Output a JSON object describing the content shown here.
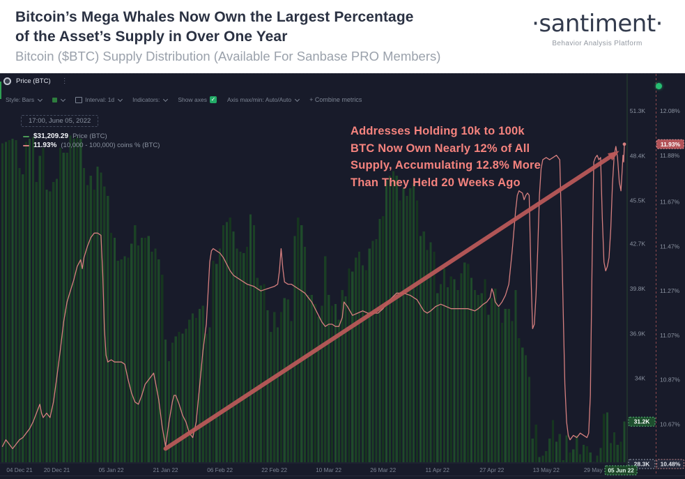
{
  "header": {
    "title_line1": "Bitcoin’s Mega Whales Now Own the Largest Percentage",
    "title_line2": "of the Asset’s Supply in Over One Year",
    "subtitle": "Bitcoin ($BTC) Supply Distribution (Available For Sanbase PRO Members)",
    "logo": "·santiment·",
    "logo_tagline": "Behavior Analysis Platform"
  },
  "chart_header": {
    "metric_title": "Price (BTC)",
    "menu_glyph": "⋮"
  },
  "toolbar": {
    "style_label": "Style: Bars",
    "interval_label": "Interval: 1d",
    "indicators_label": "Indicators:",
    "show_axes_label": "Show axes",
    "check_glyph": "✓",
    "axis_label": "Axis max/min: Auto/Auto",
    "combine_label": "+ Combine metrics"
  },
  "legend": {
    "timestamp": "17:00, June 05, 2022",
    "price_value": "$31,209.29",
    "price_label": "Price (BTC)",
    "pct_value": "11.93%",
    "pct_label": "(10,000 - 100,000) coins % (BTC)"
  },
  "annotation": {
    "lines": [
      "Addresses Holding 10k to 100k",
      "BTC Now Own Nearly 12% of All",
      "Supply, Accumulating 12.8% More",
      "Than They Held 20 Weeks Ago"
    ]
  },
  "chart_data": {
    "type": "bar+line",
    "title": "Bitcoin ($BTC) Supply Distribution",
    "x_axis": {
      "start_date": "2021-12-04",
      "end_date": "2022-06-05",
      "tick_labels": [
        "04 Dec 21",
        "20 Dec 21",
        "05 Jan 22",
        "21 Jan 22",
        "06 Feb 22",
        "22 Feb 22",
        "10 Mar 22",
        "26 Mar 22",
        "11 Apr 22",
        "27 Apr 22",
        "13 May 22",
        "29 May 22"
      ],
      "tick_days": [
        0,
        16,
        32,
        48,
        64,
        80,
        96,
        112,
        128,
        144,
        160,
        175
      ],
      "cursor_tick": {
        "label": "05 Jun 22",
        "day": 182
      }
    },
    "y_axis_price": {
      "label": "Price (BTC)",
      "min": 28.3,
      "max": 51.3,
      "ticks": [
        {
          "v": 51.3,
          "label": "51.3K"
        },
        {
          "v": 48.4,
          "label": "48.4K"
        },
        {
          "v": 45.5,
          "label": "45.5K"
        },
        {
          "v": 42.7,
          "label": "42.7K"
        },
        {
          "v": 39.8,
          "label": "39.8K"
        },
        {
          "v": 36.9,
          "label": "36.9K"
        },
        {
          "v": 34.0,
          "label": "34K"
        }
      ],
      "current": {
        "v": 31.2,
        "label": "31.2K"
      },
      "cursor": {
        "v": 28.3,
        "label": "28.3K"
      }
    },
    "y_axis_pct": {
      "label": "(10,000 - 100,000) coins % (BTC)",
      "min": 10.48,
      "max": 12.08,
      "ticks": [
        {
          "v": 12.08,
          "label": "12.08%"
        },
        {
          "v": 11.88,
          "label": "11.88%"
        },
        {
          "v": 11.67,
          "label": "11.67%"
        },
        {
          "v": 11.47,
          "label": "11.47%"
        },
        {
          "v": 11.27,
          "label": "11.27%"
        },
        {
          "v": 11.07,
          "label": "11.07%"
        },
        {
          "v": 10.87,
          "label": "10.87%"
        },
        {
          "v": 10.67,
          "label": "10.67%"
        }
      ],
      "current": {
        "v": 11.93,
        "label": "11.93%"
      },
      "cursor": {
        "v": 10.48,
        "label": "10.48%"
      }
    },
    "price_bars": [
      49.2,
      49.3,
      49.4,
      49.5,
      49.4,
      47.6,
      47.2,
      49.3,
      49.5,
      49.6,
      46.7,
      48.4,
      48.9,
      46.2,
      46.1,
      46.7,
      46.9,
      48.9,
      48.6,
      48.6,
      49.7,
      49.5,
      49.6,
      49.5,
      47.6,
      46.5,
      47.1,
      46.2,
      47.7,
      47.3,
      46.4,
      45.8,
      43.4,
      43.1,
      41.6,
      41.7,
      41.9,
      41.8,
      42.7,
      43.9,
      42.6,
      43.1,
      43.1,
      43.2,
      42.2,
      42.4,
      41.7,
      40.7,
      36.5,
      35.1,
      36.3,
      36.7,
      37.0,
      36.9,
      37.2,
      37.8,
      38.2,
      37.9,
      38.5,
      38.7,
      36.9,
      37.3,
      41.6,
      41.4,
      42.4,
      43.9,
      44.1,
      44.4,
      43.5,
      42.4,
      42.2,
      42.1,
      42.5,
      44.6,
      43.9,
      40.5,
      40.0,
      40.1,
      38.4,
      37.0,
      38.3,
      37.3,
      38.3,
      39.2,
      39.1,
      37.7,
      43.2,
      44.4,
      43.9,
      42.5,
      39.4,
      39.4,
      38.8,
      38.0,
      38.7,
      41.9,
      39.4,
      38.7,
      38.8,
      37.8,
      39.7,
      39.3,
      41.1,
      40.9,
      41.8,
      42.2,
      41.3,
      41.0,
      42.4,
      42.9,
      43.0,
      44.3,
      44.5,
      46.8,
      47.1,
      47.4,
      47.1,
      45.5,
      46.3,
      45.8,
      46.3,
      46.6,
      45.5,
      43.2,
      43.5,
      42.3,
      42.8,
      42.2,
      39.5,
      40.1,
      41.1,
      39.9,
      40.6,
      40.4,
      39.7,
      40.8,
      41.5,
      41.4,
      40.5,
      39.7,
      39.4,
      39.5,
      40.4,
      38.1,
      39.2,
      39.8,
      38.6,
      37.6,
      38.5,
      38.5,
      37.7,
      39.7,
      36.6,
      36.0,
      35.5,
      34.1,
      30.1,
      31.0,
      28.9,
      29.0,
      29.3,
      30.1,
      31.3,
      29.9,
      30.4,
      28.7,
      30.3,
      29.2,
      29.4,
      30.3,
      29.1,
      29.7,
      29.6,
      29.2,
      28.6,
      29.0,
      29.5,
      31.7,
      31.8,
      29.8,
      30.5,
      29.7,
      29.9,
      31.2
    ],
    "pct_line_points": [
      [
        0,
        10.57
      ],
      [
        1,
        10.6
      ],
      [
        2,
        10.58
      ],
      [
        3,
        10.56
      ],
      [
        4,
        10.58
      ],
      [
        5,
        10.6
      ],
      [
        6,
        10.61
      ],
      [
        7,
        10.63
      ],
      [
        8,
        10.65
      ],
      [
        9,
        10.68
      ],
      [
        10,
        10.72
      ],
      [
        11,
        10.76
      ],
      [
        11.5,
        10.72
      ],
      [
        12,
        10.7
      ],
      [
        13,
        10.72
      ],
      [
        14,
        10.7
      ],
      [
        15,
        10.77
      ],
      [
        16,
        10.88
      ],
      [
        17,
        11.0
      ],
      [
        18,
        11.13
      ],
      [
        19,
        11.22
      ],
      [
        20,
        11.27
      ],
      [
        21,
        11.32
      ],
      [
        22,
        11.38
      ],
      [
        23,
        11.41
      ],
      [
        23.5,
        11.37
      ],
      [
        24,
        11.42
      ],
      [
        25,
        11.47
      ],
      [
        26,
        11.51
      ],
      [
        27,
        11.53
      ],
      [
        28,
        11.53
      ],
      [
        29,
        11.52
      ],
      [
        29.5,
        11.35
      ],
      [
        30,
        11.1
      ],
      [
        30.5,
        10.98
      ],
      [
        31,
        10.95
      ],
      [
        32,
        10.96
      ],
      [
        33,
        10.95
      ],
      [
        34,
        10.95
      ],
      [
        35,
        10.95
      ],
      [
        36,
        10.94
      ],
      [
        37,
        10.87
      ],
      [
        38,
        10.81
      ],
      [
        39,
        10.77
      ],
      [
        40,
        10.76
      ],
      [
        41,
        10.8
      ],
      [
        42,
        10.85
      ],
      [
        43,
        10.87
      ],
      [
        44,
        10.89
      ],
      [
        44.5,
        10.9
      ],
      [
        45,
        10.86
      ],
      [
        46,
        10.78
      ],
      [
        47,
        10.66
      ],
      [
        48,
        10.57
      ],
      [
        49,
        10.68
      ],
      [
        50,
        10.77
      ],
      [
        50.5,
        10.8
      ],
      [
        51,
        10.8
      ],
      [
        52,
        10.76
      ],
      [
        53,
        10.71
      ],
      [
        54,
        10.68
      ],
      [
        55,
        10.63
      ],
      [
        56,
        10.61
      ],
      [
        57,
        10.68
      ],
      [
        58,
        10.84
      ],
      [
        59,
        11.0
      ],
      [
        60,
        11.12
      ],
      [
        61,
        11.4
      ],
      [
        61.5,
        11.45
      ],
      [
        62,
        11.46
      ],
      [
        63,
        11.45
      ],
      [
        64,
        11.44
      ],
      [
        65,
        11.42
      ],
      [
        66,
        11.39
      ],
      [
        67,
        11.36
      ],
      [
        68,
        11.34
      ],
      [
        70,
        11.32
      ],
      [
        72,
        11.3
      ],
      [
        74,
        11.29
      ],
      [
        76,
        11.27
      ],
      [
        78,
        11.28
      ],
      [
        80,
        11.29
      ],
      [
        81,
        11.3
      ],
      [
        81.5,
        11.36
      ],
      [
        82,
        11.46
      ],
      [
        82.5,
        11.37
      ],
      [
        83,
        11.31
      ],
      [
        84,
        11.3
      ],
      [
        85,
        11.3
      ],
      [
        86,
        11.29
      ],
      [
        87,
        11.28
      ],
      [
        88,
        11.27
      ],
      [
        89,
        11.26
      ],
      [
        90,
        11.24
      ],
      [
        91,
        11.22
      ],
      [
        92,
        11.19
      ],
      [
        93,
        11.16
      ],
      [
        94,
        11.13
      ],
      [
        95,
        11.11
      ],
      [
        96,
        11.12
      ],
      [
        97,
        11.12
      ],
      [
        98,
        11.11
      ],
      [
        99,
        11.11
      ],
      [
        100,
        11.15
      ],
      [
        100.5,
        11.22
      ],
      [
        101.5,
        11.2
      ],
      [
        103,
        11.16
      ],
      [
        104.5,
        11.17
      ],
      [
        106,
        11.18
      ],
      [
        107.5,
        11.17
      ],
      [
        109,
        11.17
      ],
      [
        110.5,
        11.17
      ],
      [
        112,
        11.19
      ],
      [
        114,
        11.23
      ],
      [
        116,
        11.26
      ],
      [
        118,
        11.26
      ],
      [
        120,
        11.25
      ],
      [
        122,
        11.23
      ],
      [
        124,
        11.18
      ],
      [
        125,
        11.17
      ],
      [
        126,
        11.18
      ],
      [
        127.5,
        11.2
      ],
      [
        129,
        11.21
      ],
      [
        130.5,
        11.2
      ],
      [
        132,
        11.19
      ],
      [
        133.5,
        11.19
      ],
      [
        135,
        11.19
      ],
      [
        137,
        11.19
      ],
      [
        139,
        11.18
      ],
      [
        140,
        11.19
      ],
      [
        141.5,
        11.21
      ],
      [
        142.5,
        11.22
      ],
      [
        143.5,
        11.24
      ],
      [
        144,
        11.28
      ],
      [
        144.5,
        11.26
      ],
      [
        145,
        11.22
      ],
      [
        146,
        11.2
      ],
      [
        147,
        11.22
      ],
      [
        148,
        11.25
      ],
      [
        149,
        11.3
      ],
      [
        150,
        11.45
      ],
      [
        151,
        11.63
      ],
      [
        151.5,
        11.7
      ],
      [
        152,
        11.72
      ],
      [
        153,
        11.71
      ],
      [
        153.5,
        11.68
      ],
      [
        154,
        11.7
      ],
      [
        154.5,
        11.71
      ],
      [
        155,
        11.7
      ],
      [
        155.5,
        11.35
      ],
      [
        156,
        11.1
      ],
      [
        156.5,
        11.12
      ],
      [
        157,
        11.25
      ],
      [
        157.5,
        11.45
      ],
      [
        158,
        11.7
      ],
      [
        158.5,
        11.82
      ],
      [
        159,
        11.86
      ],
      [
        160,
        11.87
      ],
      [
        161,
        11.86
      ],
      [
        162,
        11.87
      ],
      [
        163,
        11.88
      ],
      [
        163.5,
        11.87
      ],
      [
        164,
        11.86
      ],
      [
        164.5,
        11.55
      ],
      [
        165,
        11.18
      ],
      [
        165.5,
        10.85
      ],
      [
        166,
        10.68
      ],
      [
        166.5,
        10.62
      ],
      [
        167,
        10.6
      ],
      [
        168,
        10.62
      ],
      [
        169,
        10.61
      ],
      [
        170,
        10.63
      ],
      [
        171,
        10.62
      ],
      [
        172,
        10.61
      ],
      [
        172.5,
        10.63
      ],
      [
        173,
        10.8
      ],
      [
        173.5,
        11.4
      ],
      [
        174,
        11.85
      ],
      [
        174.5,
        11.87
      ],
      [
        175,
        11.88
      ],
      [
        175.5,
        11.86
      ],
      [
        176,
        11.87
      ],
      [
        176.5,
        11.6
      ],
      [
        177,
        11.4
      ],
      [
        177.5,
        11.36
      ],
      [
        178,
        11.38
      ],
      [
        178.5,
        11.42
      ],
      [
        179,
        11.55
      ],
      [
        179.5,
        11.75
      ],
      [
        180,
        11.88
      ],
      [
        180.5,
        11.92
      ],
      [
        181,
        11.87
      ],
      [
        181.5,
        11.76
      ],
      [
        182,
        11.72
      ],
      [
        182.3,
        11.8
      ],
      [
        182.6,
        11.88
      ],
      [
        182.8,
        11.85
      ],
      [
        183,
        11.93
      ]
    ],
    "trend_arrow": {
      "from": [
        48,
        10.56
      ],
      "to": [
        181.5,
        11.9
      ]
    },
    "colors": {
      "bar": "#1d452a",
      "line": "#d67f7f",
      "arrow": "#bd5a5a",
      "badge_green_bg": "#1e4f2e",
      "badge_green_border": "#57b877",
      "badge_red_bg": "#b25257",
      "badge_red_border": "#e3979a",
      "axis_text": "#8b93a1",
      "legend_green": "#4c9a57"
    }
  }
}
